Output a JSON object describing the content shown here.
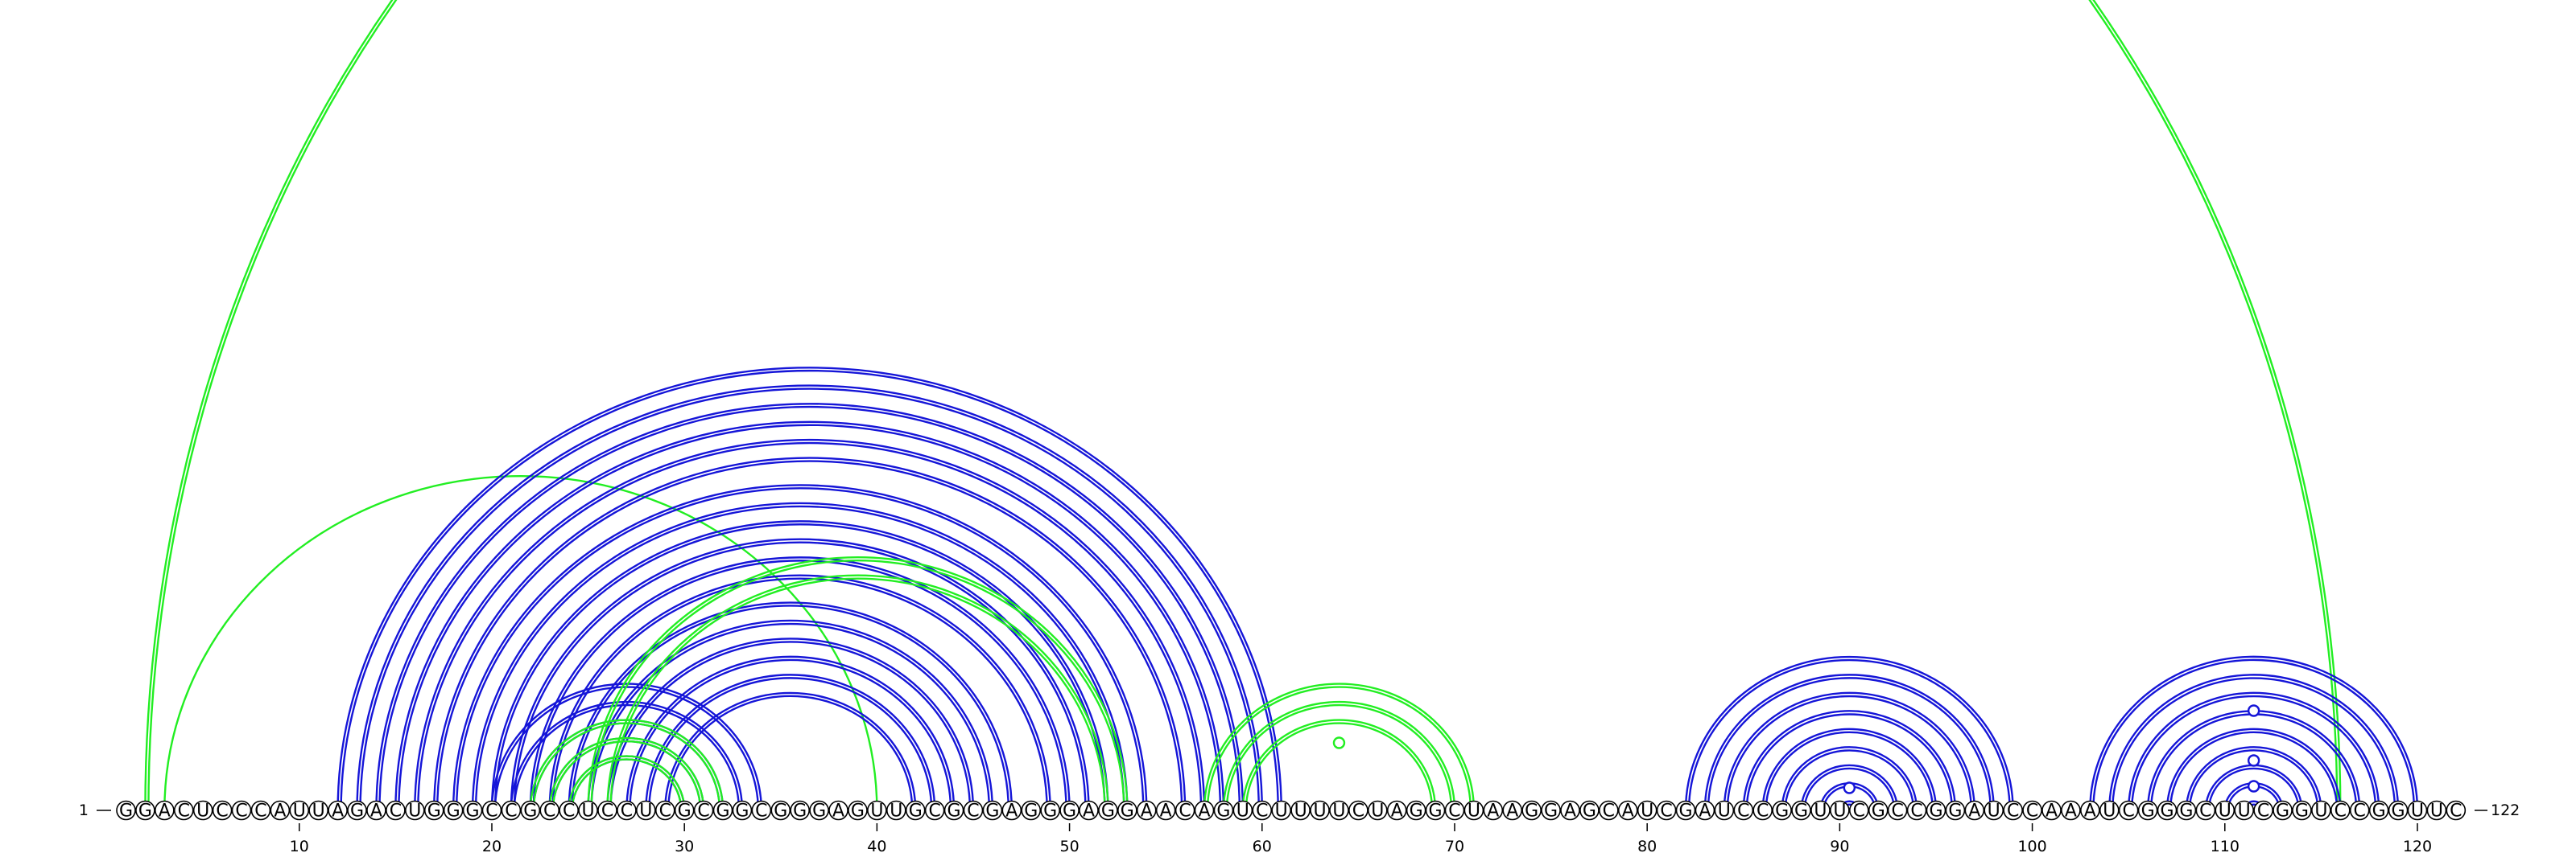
{
  "sequence": "GGACUCCCAUUAGACUGGGCCGCCUCCUCGCGGCGGGAGUUGCGCGAGGGAGGAACAGUCUUUUCUAGGCUAAGGAGCAUCGAUCCGGUUCGCCGGAUCCAAAUCGGGCUUCGGUCCGGUUC",
  "start_label": "1",
  "end_label": "122",
  "tick_positions": [
    10,
    20,
    30,
    40,
    50,
    60,
    70,
    80,
    90,
    100,
    110,
    120
  ],
  "tick_labels": [
    "10",
    "20",
    "30",
    "40",
    "50",
    "60",
    "70",
    "80",
    "90",
    "100",
    "110",
    "120"
  ],
  "colors": {
    "blue": "#1515d8",
    "green": "#22ee22",
    "line": "#000000"
  },
  "arc_groups": [
    {
      "color": "green",
      "style": "double",
      "pairs": [
        [
          2,
          116
        ]
      ]
    },
    {
      "color": "green",
      "style": "single",
      "pairs": [
        [
          3,
          40
        ]
      ]
    },
    {
      "color": "blue",
      "style": "double",
      "pairs": [
        [
          12,
          61
        ],
        [
          13,
          60
        ],
        [
          14,
          59
        ],
        [
          15,
          58
        ],
        [
          16,
          57
        ],
        [
          17,
          56
        ],
        [
          18,
          54
        ],
        [
          19,
          53
        ],
        [
          20,
          52
        ],
        [
          21,
          51
        ],
        [
          22,
          50
        ],
        [
          23,
          49
        ],
        [
          24,
          47
        ],
        [
          25,
          46
        ],
        [
          26,
          45
        ],
        [
          27,
          44
        ],
        [
          28,
          43
        ],
        [
          29,
          42
        ]
      ]
    },
    {
      "color": "blue",
      "style": "double",
      "pairs": [
        [
          20,
          34
        ],
        [
          21,
          33
        ],
        [
          22,
          32
        ],
        [
          23,
          31
        ],
        [
          24,
          30
        ]
      ]
    },
    {
      "color": "green",
      "style": "double",
      "pairs": [
        [
          22,
          32
        ],
        [
          23,
          31
        ],
        [
          24,
          30
        ]
      ]
    },
    {
      "color": "green",
      "style": "double",
      "pairs": [
        [
          25,
          53
        ],
        [
          26,
          52
        ]
      ]
    },
    {
      "color": "green",
      "style": "double",
      "pairs": [
        [
          57,
          71
        ],
        [
          58,
          70
        ],
        [
          59,
          69
        ]
      ]
    },
    {
      "color": "blue",
      "style": "double",
      "pairs": [
        [
          82,
          99
        ],
        [
          83,
          98
        ],
        [
          84,
          97
        ],
        [
          85,
          96
        ],
        [
          86,
          95
        ],
        [
          87,
          94
        ],
        [
          88,
          93
        ],
        [
          89,
          92
        ],
        [
          90,
          91
        ]
      ]
    },
    {
      "color": "blue",
      "style": "double",
      "pairs": [
        [
          103,
          120
        ],
        [
          104,
          119
        ],
        [
          105,
          118
        ],
        [
          106,
          117
        ],
        [
          107,
          116
        ],
        [
          108,
          115
        ],
        [
          109,
          114
        ],
        [
          110,
          113
        ],
        [
          111,
          112
        ]
      ]
    }
  ],
  "markers": [
    {
      "color": "green",
      "position": 64
    },
    {
      "color": "blue",
      "position": 90.5
    },
    {
      "color": "blue",
      "position": 111.5
    },
    {
      "color": "blue",
      "position": 111.5
    },
    {
      "color": "blue",
      "position": 111.5
    }
  ]
}
